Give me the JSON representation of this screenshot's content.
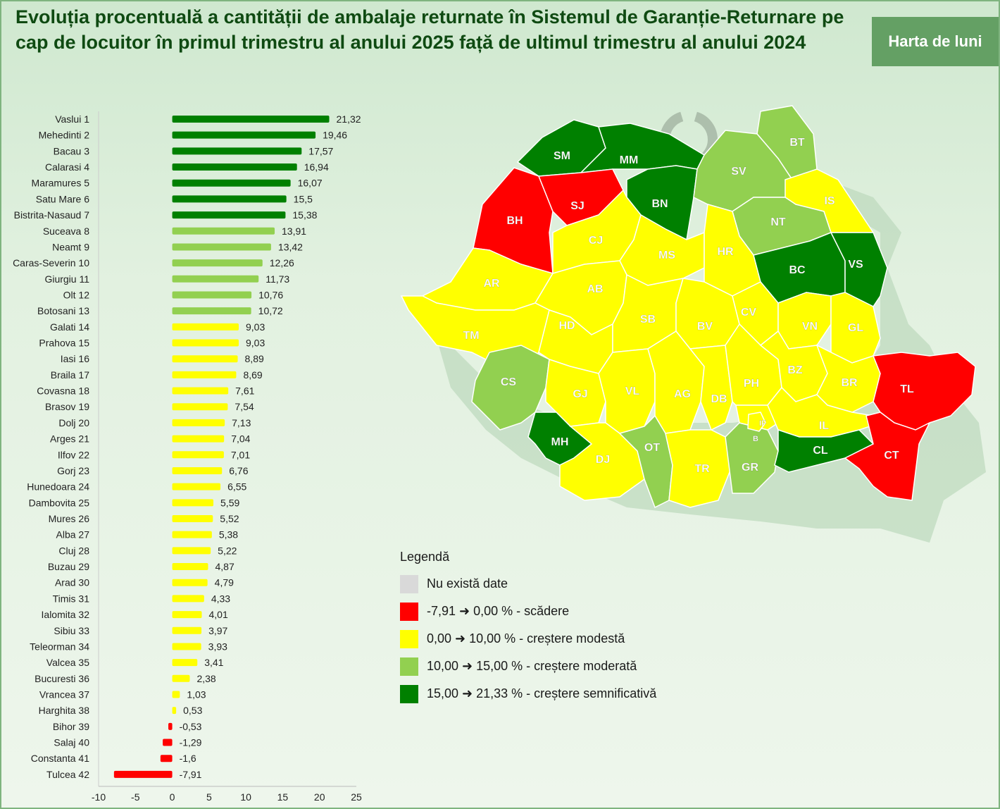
{
  "header": {
    "title": "Evoluția procentuală a cantității de ambalaje returnate în Sistemul de Garanție-Returnare pe cap de locuitor în primul trimestru al anului 2025 față de ultimul trimestru al anului 2024",
    "map_button_label": "Harta de luni"
  },
  "colors": {
    "no_data": "#d9d9d9",
    "decrease": "#ff0000",
    "modest": "#ffff00",
    "moderate": "#92d050",
    "significant": "#008000"
  },
  "chart_data": {
    "type": "bar",
    "orientation": "horizontal",
    "categories": [
      "Vaslui 1",
      "Mehedinti 2",
      "Bacau 3",
      "Calarasi 4",
      "Maramures 5",
      "Satu Mare 6",
      "Bistrita-Nasaud 7",
      "Suceava 8",
      "Neamt 9",
      "Caras-Severin 10",
      "Giurgiu 11",
      "Olt 12",
      "Botosani 13",
      "Galati 14",
      "Prahova 15",
      "Iasi 16",
      "Braila 17",
      "Covasna 18",
      "Brasov 19",
      "Dolj 20",
      "Arges 21",
      "Ilfov 22",
      "Gorj 23",
      "Hunedoara 24",
      "Dambovita 25",
      "Mures 26",
      "Alba 27",
      "Cluj 28",
      "Buzau 29",
      "Arad 30",
      "Timis 31",
      "Ialomita 32",
      "Sibiu 33",
      "Teleorman 34",
      "Valcea 35",
      "Bucuresti 36",
      "Vrancea 37",
      "Harghita 38",
      "Bihor 39",
      "Salaj 40",
      "Constanta 41",
      "Tulcea 42"
    ],
    "values": [
      21.32,
      19.46,
      17.57,
      16.94,
      16.07,
      15.5,
      15.38,
      13.91,
      13.42,
      12.26,
      11.73,
      10.76,
      10.72,
      9.03,
      9.03,
      8.89,
      8.69,
      7.61,
      7.54,
      7.13,
      7.04,
      7.01,
      6.76,
      6.55,
      5.59,
      5.52,
      5.38,
      5.22,
      4.87,
      4.79,
      4.33,
      4.01,
      3.97,
      3.93,
      3.41,
      2.38,
      1.03,
      0.53,
      -0.53,
      -1.29,
      -1.6,
      -7.91
    ],
    "value_labels": [
      "21,32",
      "19,46",
      "17,57",
      "16,94",
      "16,07",
      "15,5",
      "15,38",
      "13,91",
      "13,42",
      "12,26",
      "11,73",
      "10,76",
      "10,72",
      "9,03",
      "9,03",
      "8,89",
      "8,69",
      "7,61",
      "7,54",
      "7,13",
      "7,04",
      "7,01",
      "6,76",
      "6,55",
      "5,59",
      "5,52",
      "5,38",
      "5,22",
      "4,87",
      "4,79",
      "4,33",
      "4,01",
      "3,97",
      "3,93",
      "3,41",
      "2,38",
      "1,03",
      "0,53",
      "-0,53",
      "-1,29",
      "-1,6",
      "-7,91"
    ],
    "xlim": [
      -10,
      25
    ],
    "xticks": [
      -10,
      -5,
      0,
      5,
      10,
      15,
      20,
      25
    ],
    "xtick_labels": [
      "-10",
      "-5",
      "0",
      "5",
      "10",
      "15",
      "20",
      "25"
    ],
    "grid": false
  },
  "map": {
    "regions": [
      {
        "code": "SM",
        "cls": "significant"
      },
      {
        "code": "MM",
        "cls": "significant"
      },
      {
        "code": "BT",
        "cls": "moderate"
      },
      {
        "code": "BH",
        "cls": "decrease"
      },
      {
        "code": "SJ",
        "cls": "decrease"
      },
      {
        "code": "BN",
        "cls": "significant"
      },
      {
        "code": "SV",
        "cls": "moderate"
      },
      {
        "code": "IS",
        "cls": "modest"
      },
      {
        "code": "NT",
        "cls": "moderate"
      },
      {
        "code": "CJ",
        "cls": "modest"
      },
      {
        "code": "AR",
        "cls": "modest"
      },
      {
        "code": "MS",
        "cls": "modest"
      },
      {
        "code": "HR",
        "cls": "modest"
      },
      {
        "code": "BC",
        "cls": "significant"
      },
      {
        "code": "VS",
        "cls": "significant"
      },
      {
        "code": "AB",
        "cls": "modest"
      },
      {
        "code": "TM",
        "cls": "modest"
      },
      {
        "code": "HD",
        "cls": "modest"
      },
      {
        "code": "SB",
        "cls": "modest"
      },
      {
        "code": "BV",
        "cls": "modest"
      },
      {
        "code": "CV",
        "cls": "modest"
      },
      {
        "code": "VN",
        "cls": "modest"
      },
      {
        "code": "GL",
        "cls": "modest"
      },
      {
        "code": "CS",
        "cls": "moderate"
      },
      {
        "code": "GJ",
        "cls": "modest"
      },
      {
        "code": "VL",
        "cls": "modest"
      },
      {
        "code": "AG",
        "cls": "modest"
      },
      {
        "code": "DB",
        "cls": "modest"
      },
      {
        "code": "PH",
        "cls": "modest"
      },
      {
        "code": "BZ",
        "cls": "modest"
      },
      {
        "code": "BR",
        "cls": "modest"
      },
      {
        "code": "TL",
        "cls": "decrease"
      },
      {
        "code": "MH",
        "cls": "significant"
      },
      {
        "code": "DJ",
        "cls": "modest"
      },
      {
        "code": "OT",
        "cls": "moderate"
      },
      {
        "code": "TR",
        "cls": "modest"
      },
      {
        "code": "GR",
        "cls": "moderate"
      },
      {
        "code": "IF",
        "cls": "modest"
      },
      {
        "code": "B",
        "cls": "modest"
      },
      {
        "code": "IL",
        "cls": "modest"
      },
      {
        "code": "CL",
        "cls": "significant"
      },
      {
        "code": "CT",
        "cls": "decrease"
      }
    ]
  },
  "legend": {
    "title": "Legendă",
    "items": [
      {
        "label": "Nu există date",
        "cls": "no_data"
      },
      {
        "label": "-7,91 ➜ 0,00 % - scădere",
        "cls": "decrease"
      },
      {
        "label": "0,00 ➜ 10,00 % - creștere modestă",
        "cls": "modest"
      },
      {
        "label": "10,00 ➜ 15,00 % - creștere moderată",
        "cls": "moderate"
      },
      {
        "label": "15,00 ➜ 21,33 % - creștere semnificativă",
        "cls": "significant"
      }
    ]
  }
}
